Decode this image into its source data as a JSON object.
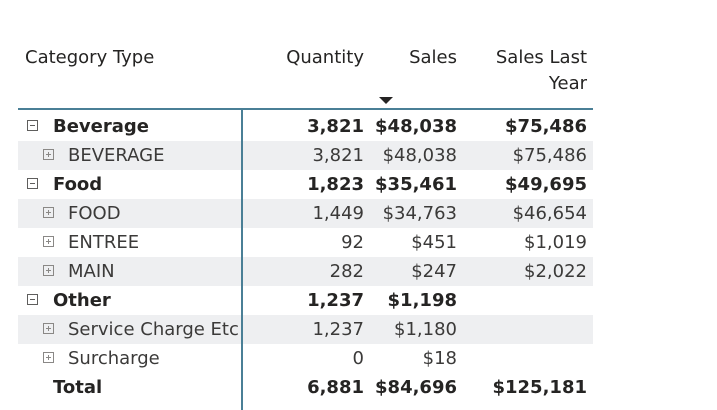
{
  "matrix": {
    "headers": {
      "category": "Category Type",
      "quantity": "Quantity",
      "sales": "Sales",
      "sales_last_year_line1": "Sales Last",
      "sales_last_year_line2": "Year"
    },
    "sort": {
      "column": "Sales",
      "direction": "descending",
      "icon": "sort-down-icon"
    },
    "rows": [
      {
        "level": 0,
        "expanded": true,
        "name": "Beverage",
        "quantity": "3,821",
        "sales": "$48,038",
        "sales_last_year": "$75,486"
      },
      {
        "level": 1,
        "expanded": false,
        "name": "BEVERAGE",
        "quantity": "3,821",
        "sales": "$48,038",
        "sales_last_year": "$75,486"
      },
      {
        "level": 0,
        "expanded": true,
        "name": "Food",
        "quantity": "1,823",
        "sales": "$35,461",
        "sales_last_year": "$49,695"
      },
      {
        "level": 1,
        "expanded": false,
        "name": "FOOD",
        "quantity": "1,449",
        "sales": "$34,763",
        "sales_last_year": "$46,654"
      },
      {
        "level": 1,
        "expanded": false,
        "name": "ENTREE",
        "quantity": "92",
        "sales": "$451",
        "sales_last_year": "$1,019"
      },
      {
        "level": 1,
        "expanded": false,
        "name": "MAIN",
        "quantity": "282",
        "sales": "$247",
        "sales_last_year": "$2,022"
      },
      {
        "level": 0,
        "expanded": true,
        "name": "Other",
        "quantity": "1,237",
        "sales": "$1,198",
        "sales_last_year": ""
      },
      {
        "level": 1,
        "expanded": false,
        "name": "Service Charge Etc",
        "quantity": "1,237",
        "sales": "$1,180",
        "sales_last_year": ""
      },
      {
        "level": 1,
        "expanded": false,
        "name": "Surcharge",
        "quantity": "0",
        "sales": "$18",
        "sales_last_year": ""
      }
    ],
    "total": {
      "name": "Total",
      "quantity": "6,881",
      "sales": "$84,696",
      "sales_last_year": "$125,181"
    }
  },
  "colors": {
    "grid_line": "#4a7f96",
    "row_shade": "#eeeff1",
    "text": "#252423"
  }
}
